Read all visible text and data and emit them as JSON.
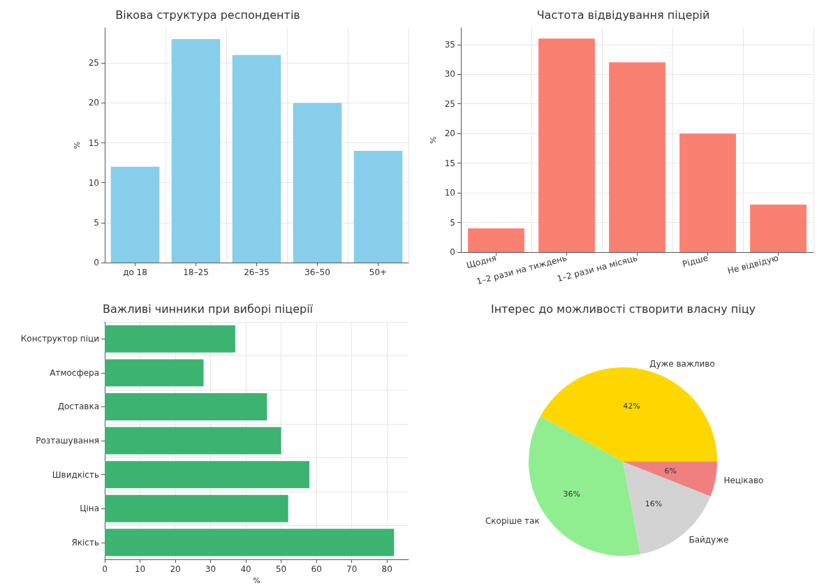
{
  "chart_data": [
    {
      "type": "bar",
      "title": "Вікова структура респондентів",
      "ylabel": "%",
      "categories": [
        "до 18",
        "18–25",
        "26–35",
        "36–50",
        "50+"
      ],
      "series": [
        {
          "color": "#87ceeb",
          "values": [
            12,
            28,
            26,
            20,
            14
          ]
        }
      ],
      "ylim": [
        0,
        29.4
      ],
      "yticks": [
        0,
        5,
        10,
        15,
        20,
        25
      ],
      "grid": true
    },
    {
      "type": "bar",
      "title": "Частота відвідування піцерій",
      "ylabel": "%",
      "categories": [
        "Щодня",
        "1–2 рази на тиждень",
        "1–2 рази на місяць",
        "Рідше",
        "Не відвідую"
      ],
      "series": [
        {
          "color": "#fa8072",
          "values": [
            4,
            36,
            32,
            20,
            8
          ]
        }
      ],
      "ylim": [
        0,
        37.8
      ],
      "yticks": [
        0,
        5,
        10,
        15,
        20,
        25,
        30,
        35
      ],
      "grid": true
    },
    {
      "type": "bar",
      "orientation": "horizontal",
      "title": "Важливі чинники при виборі піцерії",
      "xlabel": "%",
      "categories": [
        "Конструктор піци",
        "Атмосфера",
        "Доставка",
        "Розташування",
        "Швидкість",
        "Ціна",
        "Якість"
      ],
      "series": [
        {
          "color": "#3cb371",
          "values": [
            37,
            28,
            46,
            50,
            58,
            52,
            82
          ]
        }
      ],
      "xlim": [
        0,
        86.1
      ],
      "xticks": [
        0,
        10,
        20,
        30,
        40,
        50,
        60,
        70,
        80
      ],
      "grid": true
    },
    {
      "type": "pie",
      "title": "Інтерес до можливості створити власну піцу",
      "categories": [
        "Дуже важливо",
        "Скоріше так",
        "Байдуже",
        "Нецікаво"
      ],
      "values": [
        42,
        36,
        16,
        6
      ],
      "colors": [
        "#ffd700",
        "#90ee90",
        "#d3d3d3",
        "#f08080"
      ],
      "value_labels": [
        "42%",
        "36%",
        "16%",
        "6%"
      ]
    }
  ]
}
